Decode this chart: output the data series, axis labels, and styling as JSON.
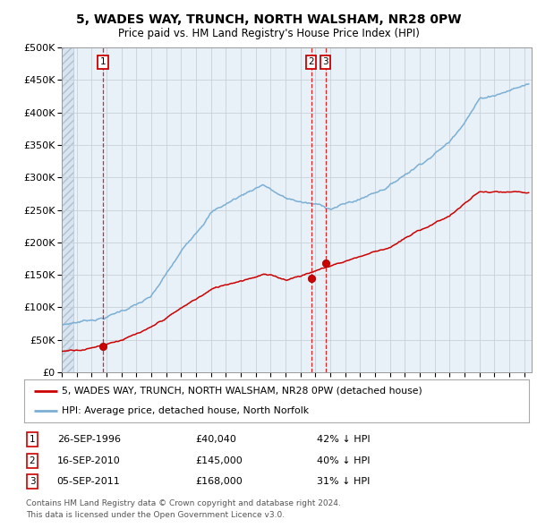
{
  "title": "5, WADES WAY, TRUNCH, NORTH WALSHAM, NR28 0PW",
  "subtitle": "Price paid vs. HM Land Registry's House Price Index (HPI)",
  "ylim": [
    0,
    500000
  ],
  "yticks": [
    0,
    50000,
    100000,
    150000,
    200000,
    250000,
    300000,
    350000,
    400000,
    450000,
    500000
  ],
  "ytick_labels": [
    "£0",
    "£50K",
    "£100K",
    "£150K",
    "£200K",
    "£250K",
    "£300K",
    "£350K",
    "£400K",
    "£450K",
    "£500K"
  ],
  "xlim_start": 1994.0,
  "xlim_end": 2025.5,
  "transactions": [
    {
      "num": 1,
      "date_num": 1996.74,
      "price": 40040,
      "date_str": "26-SEP-1996",
      "price_str": "£40,040",
      "pct_str": "42% ↓ HPI"
    },
    {
      "num": 2,
      "date_num": 2010.71,
      "price": 145000,
      "date_str": "16-SEP-2010",
      "price_str": "£145,000",
      "pct_str": "40% ↓ HPI"
    },
    {
      "num": 3,
      "date_num": 2011.67,
      "price": 168000,
      "date_str": "05-SEP-2011",
      "price_str": "£168,000",
      "pct_str": "31% ↓ HPI"
    }
  ],
  "legend_property_label": "5, WADES WAY, TRUNCH, NORTH WALSHAM, NR28 0PW (detached house)",
  "legend_hpi_label": "HPI: Average price, detached house, North Norfolk",
  "footer1": "Contains HM Land Registry data © Crown copyright and database right 2024.",
  "footer2": "This data is licensed under the Open Government Licence v3.0.",
  "property_line_color": "#cc0000",
  "hpi_line_color": "#7bafd4",
  "plot_bg_color": "#e8f0f8",
  "grid_color": "#c8d0d8"
}
